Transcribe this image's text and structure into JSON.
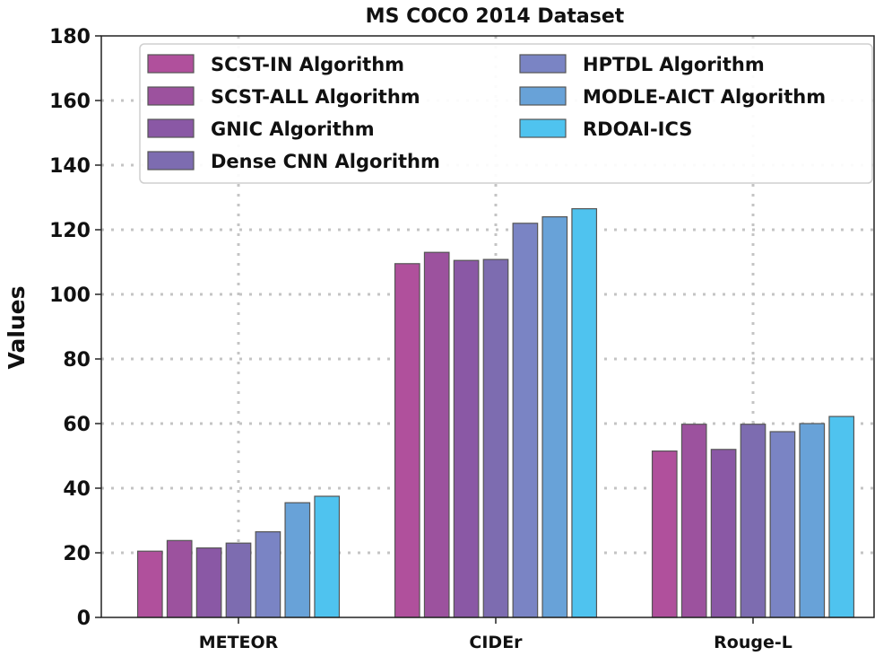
{
  "chart_data": {
    "type": "bar",
    "title": "MS COCO 2014 Dataset",
    "xlabel": "",
    "ylabel": "Values",
    "ylim": [
      0,
      180
    ],
    "yticks": [
      0,
      20,
      40,
      60,
      80,
      100,
      120,
      140,
      160,
      180
    ],
    "grid": true,
    "legend_position": "top",
    "categories": [
      "METEOR",
      "CIDEr",
      "Rouge-L"
    ],
    "series": [
      {
        "name": "SCST-IN Algorithm",
        "color": "#b0509c",
        "values": [
          20.5,
          109.5,
          51.5
        ]
      },
      {
        "name": "SCST-ALL Algorithm",
        "color": "#9c529e",
        "values": [
          23.8,
          113.0,
          59.8
        ]
      },
      {
        "name": "GNIC Algorithm",
        "color": "#8a58a5",
        "values": [
          21.5,
          110.5,
          52.0
        ]
      },
      {
        "name": "Dense CNN Algorithm",
        "color": "#7d6cb0",
        "values": [
          23.0,
          110.8,
          59.8
        ]
      },
      {
        "name": "HPTDL Algorithm",
        "color": "#7a84c4",
        "values": [
          26.5,
          122.0,
          57.5
        ]
      },
      {
        "name": "MODLE-AICT Algorithm",
        "color": "#68a2d8",
        "values": [
          35.5,
          124.0,
          60.0
        ]
      },
      {
        "name": "RDOAI-ICS",
        "color": "#4fc3ef",
        "values": [
          37.5,
          126.5,
          62.2
        ]
      }
    ]
  }
}
